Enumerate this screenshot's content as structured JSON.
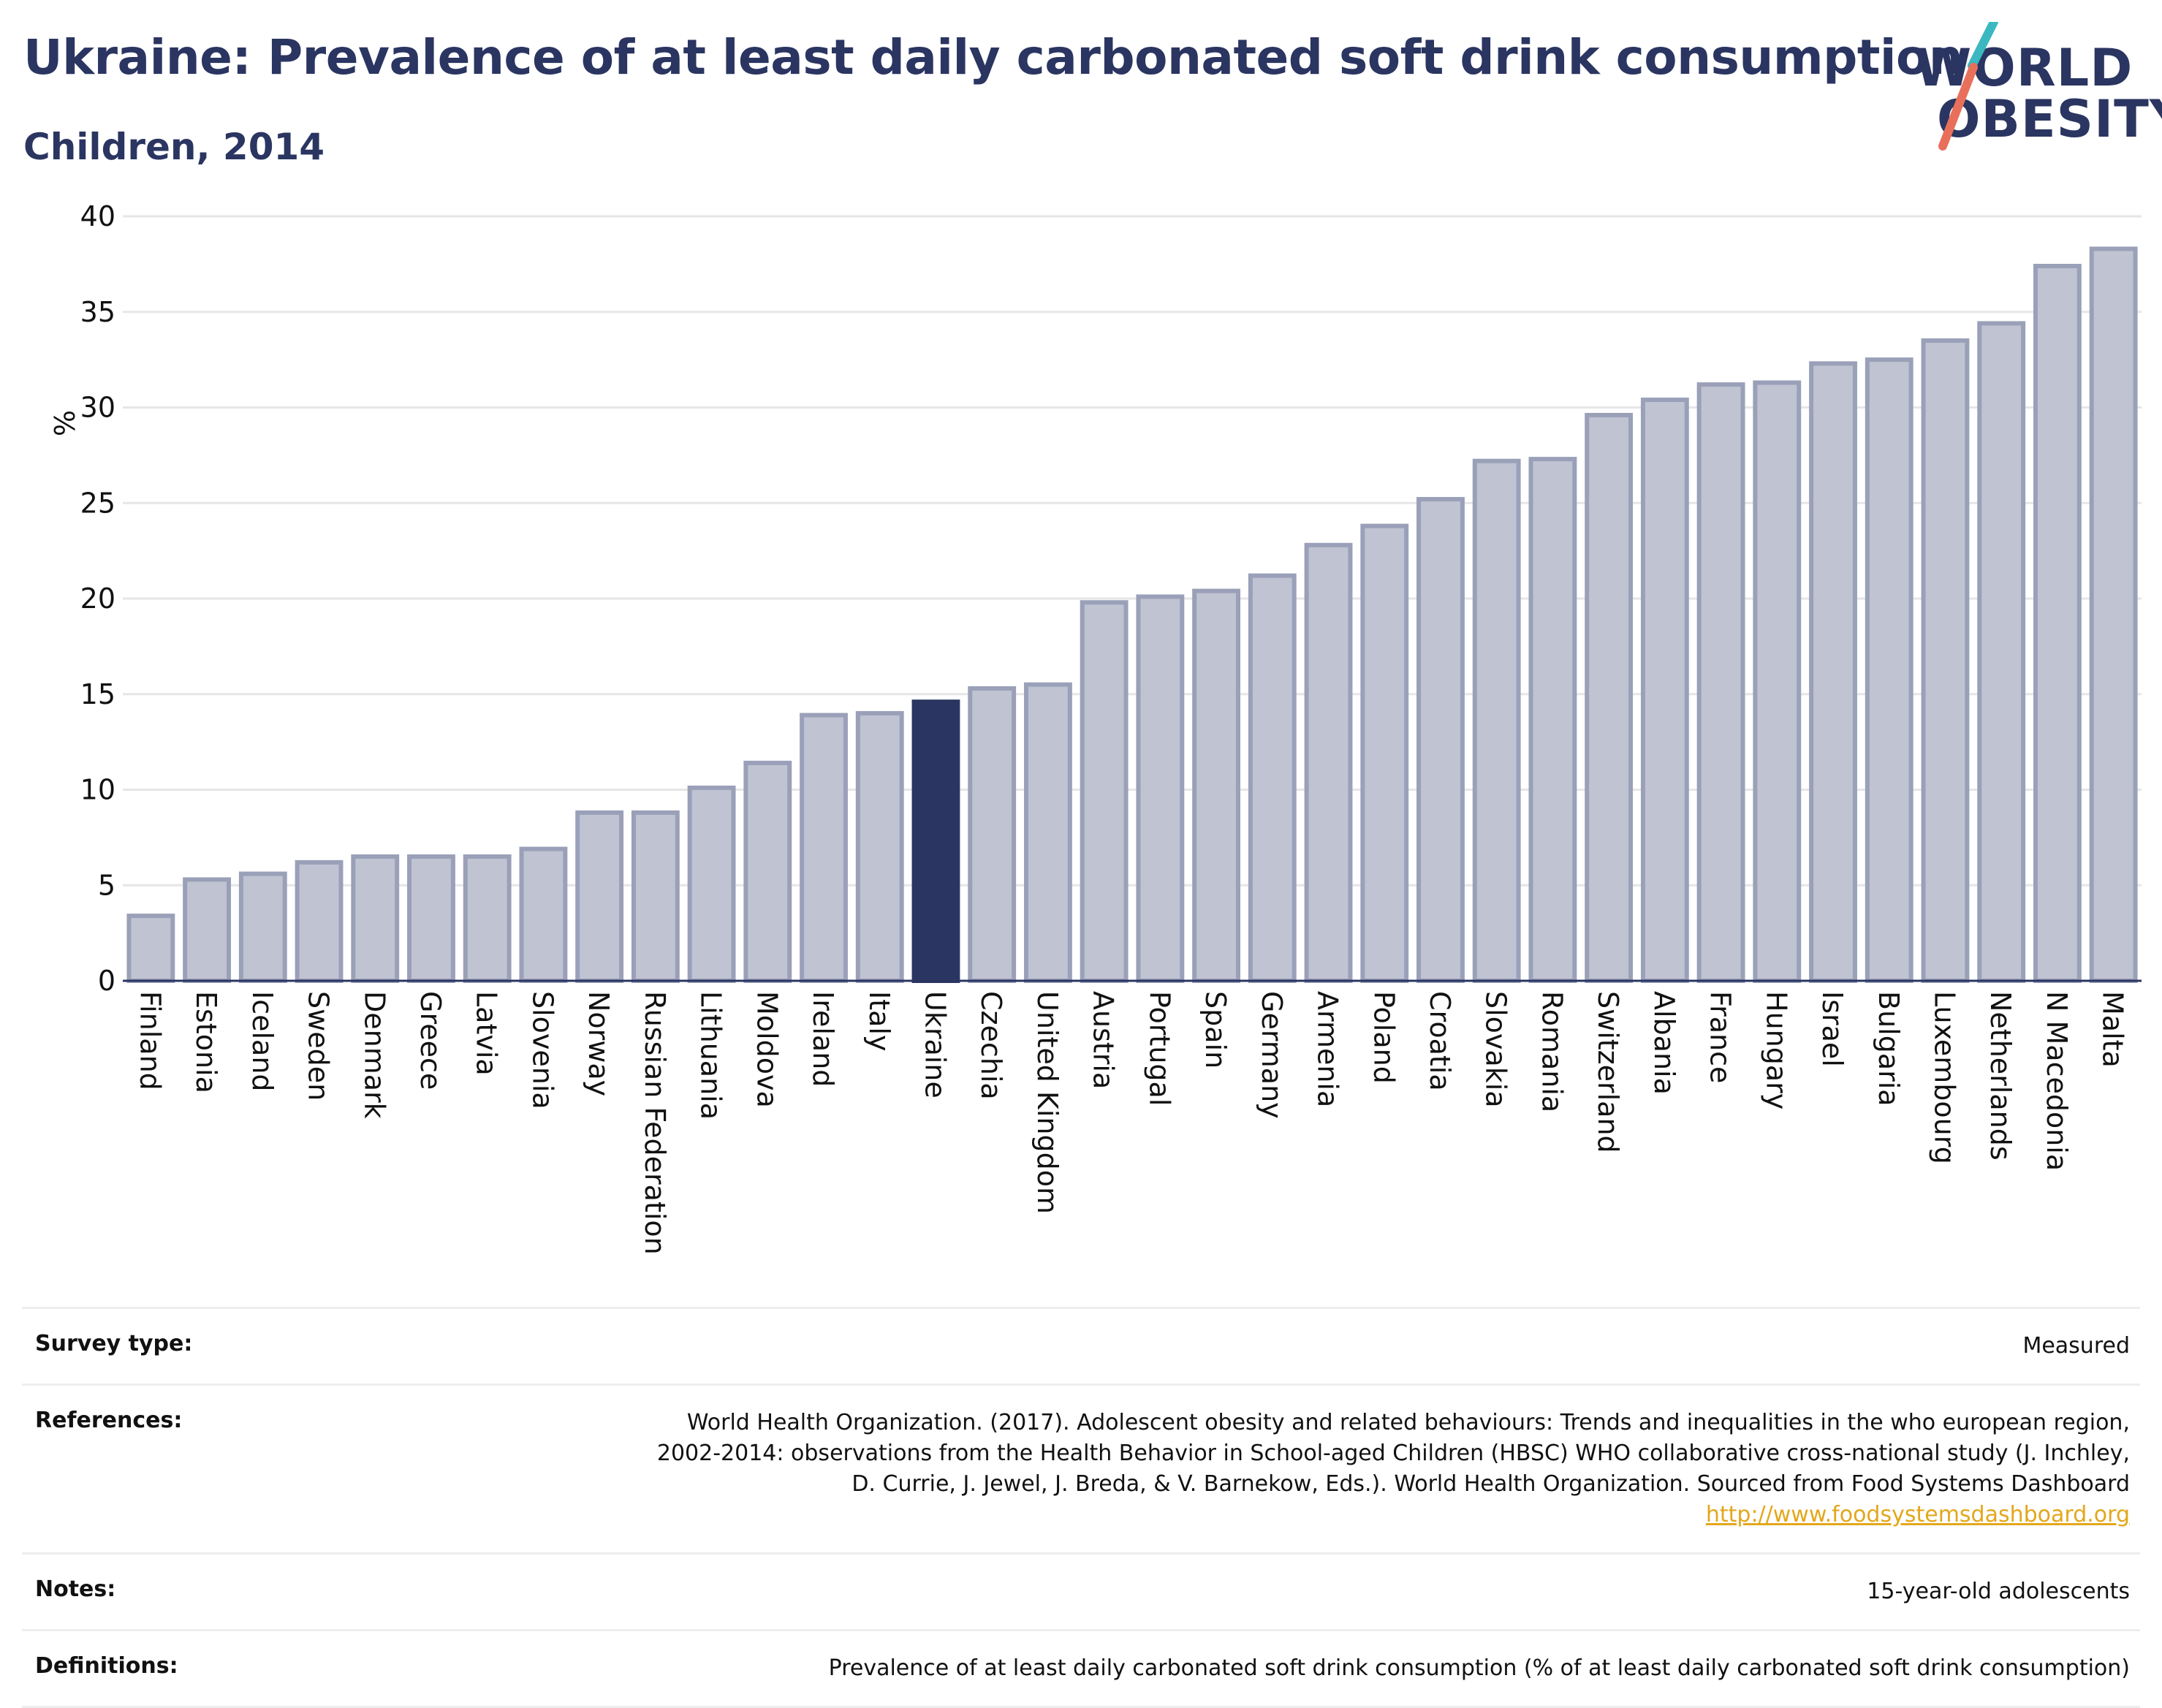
{
  "header": {
    "title": "Ukraine: Prevalence of at least daily carbonated soft drink consumption",
    "subtitle": "Children, 2014",
    "logo_line1": "WORLD",
    "logo_line2": "OBESITY"
  },
  "colors": {
    "bar_default": "#bfc3d2",
    "bar_default_stroke": "#9aa0b8",
    "bar_highlight": "#2b3561",
    "text_dark": "#2b3561",
    "logo_teal": "#3bb8c0",
    "logo_coral": "#e8705b",
    "link": "#e3a71b"
  },
  "chart_data": {
    "type": "bar",
    "ylabel": "%",
    "ylim": [
      0,
      40
    ],
    "yticks": [
      0,
      5,
      10,
      15,
      20,
      25,
      30,
      35,
      40
    ],
    "grid": true,
    "highlight": "Ukraine",
    "categories": [
      "Finland",
      "Estonia",
      "Iceland",
      "Sweden",
      "Denmark",
      "Greece",
      "Latvia",
      "Slovenia",
      "Norway",
      "Russian Federation",
      "Lithuania",
      "Moldova",
      "Ireland",
      "Italy",
      "Ukraine",
      "Czechia",
      "United Kingdom",
      "Austria",
      "Portugal",
      "Spain",
      "Germany",
      "Armenia",
      "Poland",
      "Croatia",
      "Slovakia",
      "Romania",
      "Switzerland",
      "Albania",
      "France",
      "Hungary",
      "Israel",
      "Bulgaria",
      "Luxembourg",
      "Netherlands",
      "N Macedonia",
      "Malta"
    ],
    "values": [
      3.4,
      5.3,
      5.6,
      6.2,
      6.5,
      6.5,
      6.5,
      6.9,
      8.8,
      8.8,
      10.1,
      11.4,
      13.9,
      14.0,
      14.6,
      15.3,
      15.5,
      19.8,
      20.1,
      20.4,
      21.2,
      22.8,
      23.8,
      25.2,
      27.2,
      27.3,
      29.6,
      30.4,
      31.2,
      31.3,
      32.3,
      32.5,
      33.5,
      34.4,
      37.4,
      38.3
    ]
  },
  "info": {
    "survey_type_label": "Survey type:",
    "survey_type_value": "Measured",
    "references_label": "References:",
    "references_line1": "World Health Organization. (2017). Adolescent obesity and related behaviours: Trends and inequalities in the who european region,",
    "references_line2": "2002-2014: observations from the Health Behavior in School-aged Children (HBSC) WHO collaborative cross-national study (J. Inchley,",
    "references_line3": "D. Currie, J. Jewel, J. Breda, & V. Barnekow, Eds.). World Health Organization. Sourced from Food Systems Dashboard",
    "references_link": "http://www.foodsystemsdashboard.org",
    "notes_label": "Notes:",
    "notes_value": "15-year-old adolescents",
    "definitions_label": "Definitions:",
    "definitions_value": "Prevalence of at least daily carbonated soft drink consumption (% of at least daily carbonated soft drink consumption)"
  }
}
